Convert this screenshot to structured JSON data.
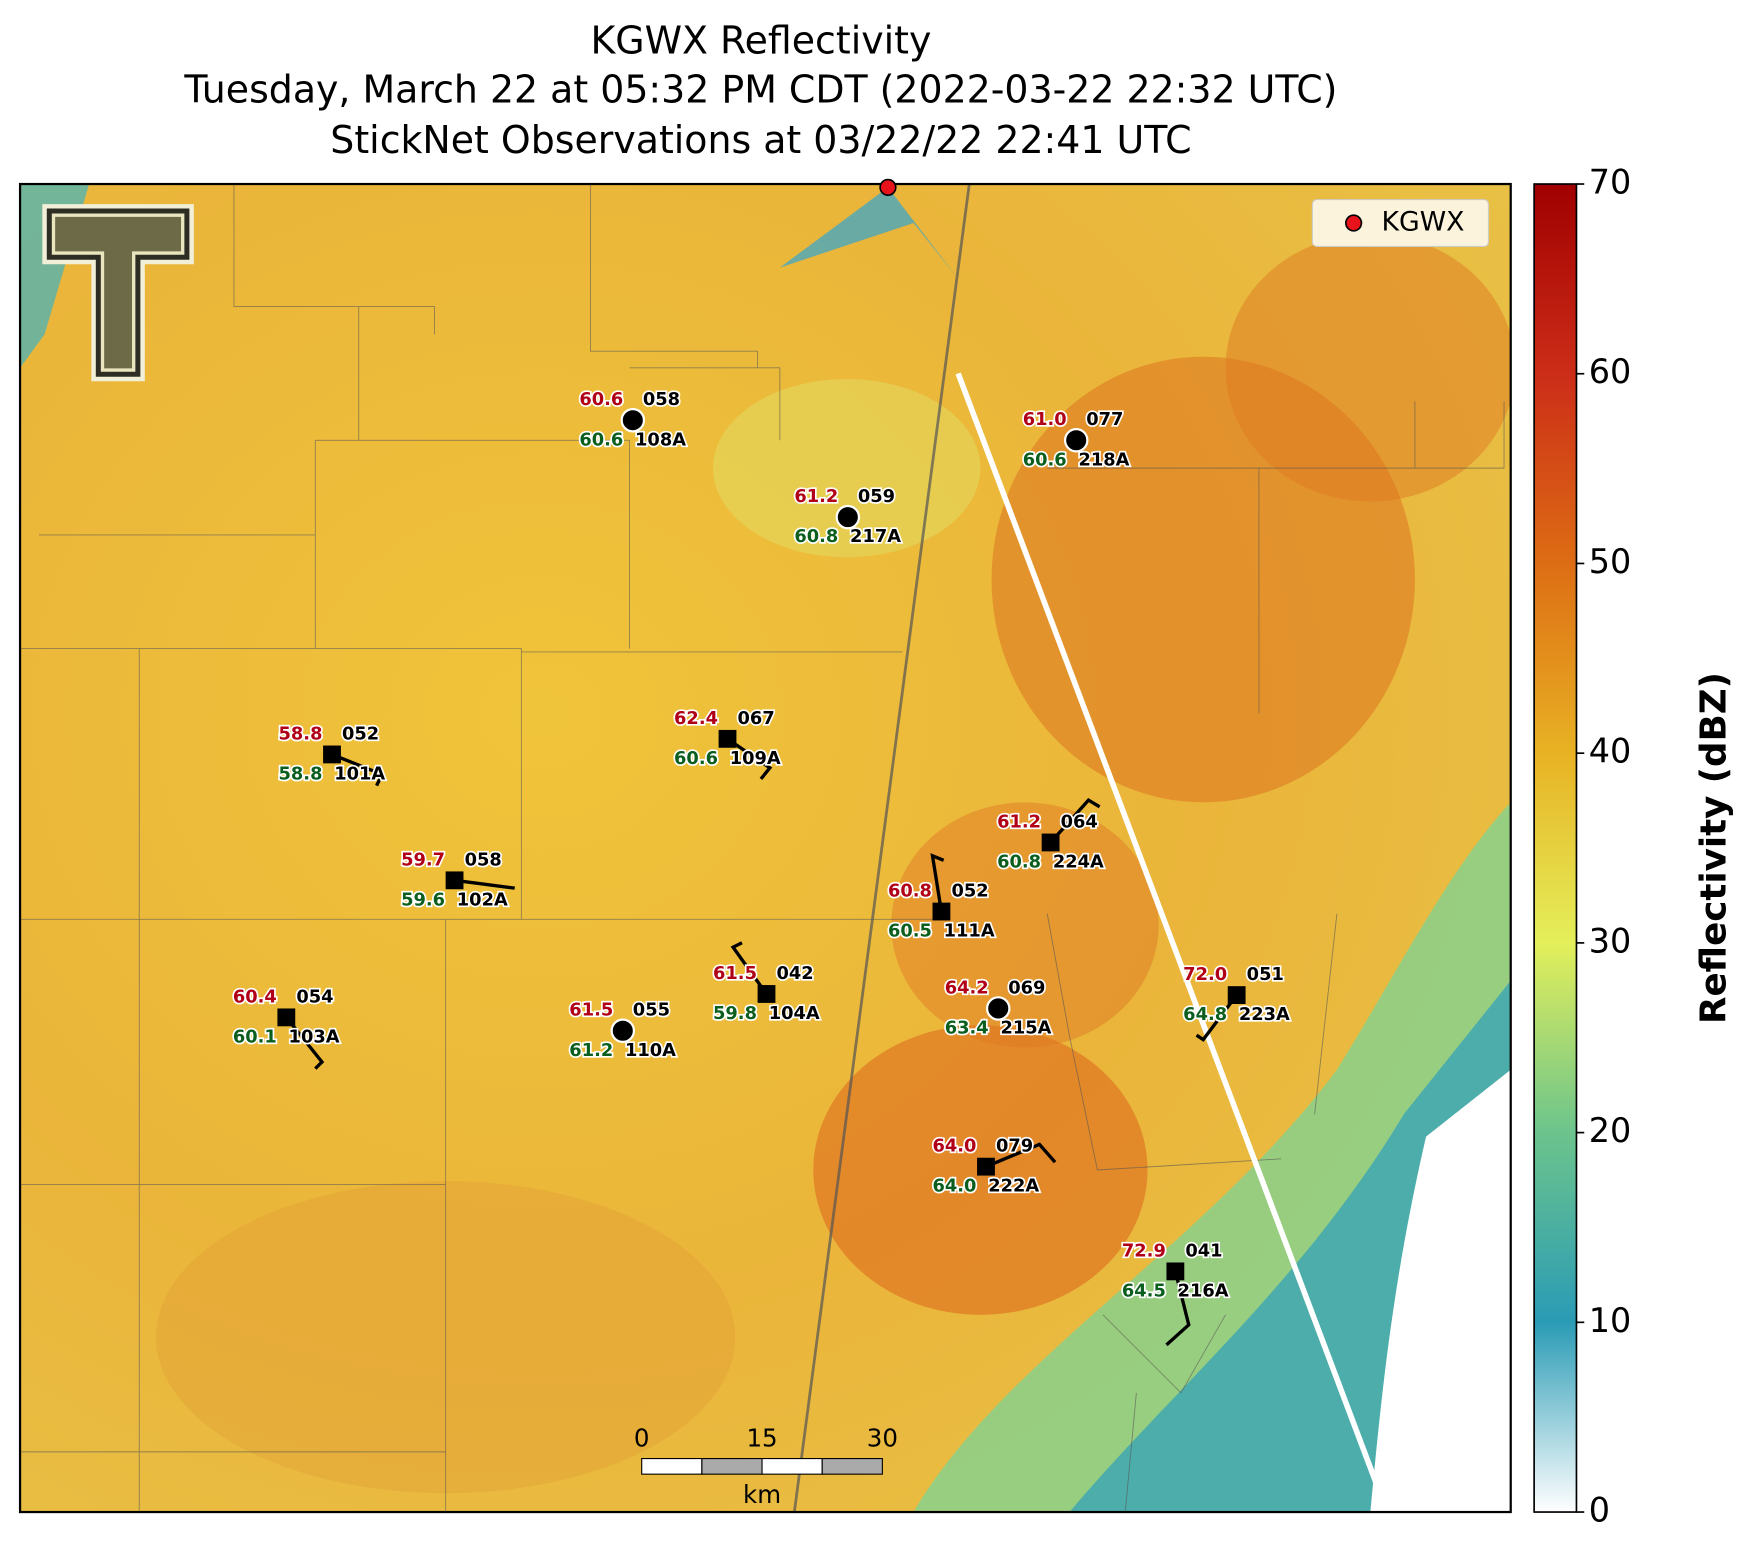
{
  "title": [
    "KGWX Reflectivity",
    "Tuesday, March 22 at 05:32 PM CDT (2022-03-22 22:32 UTC)",
    "StickNet Observations at 03/22/22 22:41 UTC"
  ],
  "legend": {
    "label": "KGWX",
    "color": "#e8131a"
  },
  "colorbar": {
    "label": "Reflectivity (dBZ)",
    "lim": [
      0,
      70
    ],
    "ticks": [
      0,
      10,
      20,
      30,
      40,
      50,
      60,
      70
    ]
  },
  "scale_bar": {
    "ticks": [
      0,
      15,
      30
    ],
    "unit": "km"
  },
  "stations": [
    {
      "id": "108A",
      "temp": 60.6,
      "dew": 60.6,
      "code": "058",
      "marker": "circle"
    },
    {
      "id": "218A",
      "temp": 61.0,
      "dew": 60.6,
      "code": "077",
      "marker": "circle"
    },
    {
      "id": "217A",
      "temp": 61.2,
      "dew": 60.8,
      "code": "059",
      "marker": "circle"
    },
    {
      "id": "101A",
      "temp": 58.8,
      "dew": 58.8,
      "code": "052",
      "marker": "square"
    },
    {
      "id": "109A",
      "temp": 62.4,
      "dew": 60.6,
      "code": "067",
      "marker": "square"
    },
    {
      "id": "224A",
      "temp": 61.2,
      "dew": 60.8,
      "code": "064",
      "marker": "square"
    },
    {
      "id": "102A",
      "temp": 59.7,
      "dew": 59.6,
      "code": "058",
      "marker": "square"
    },
    {
      "id": "111A",
      "temp": 60.8,
      "dew": 60.5,
      "code": "052",
      "marker": "square"
    },
    {
      "id": "103A",
      "temp": 60.4,
      "dew": 60.1,
      "code": "054",
      "marker": "square"
    },
    {
      "id": "110A",
      "temp": 61.5,
      "dew": 61.2,
      "code": "055",
      "marker": "circle"
    },
    {
      "id": "104A",
      "temp": 61.5,
      "dew": 59.8,
      "code": "042",
      "marker": "square"
    },
    {
      "id": "215A",
      "temp": 64.2,
      "dew": 63.4,
      "code": "069",
      "marker": "circle"
    },
    {
      "id": "223A",
      "temp": 72.0,
      "dew": 64.8,
      "code": "051",
      "marker": "square"
    },
    {
      "id": "222A",
      "temp": 64.0,
      "dew": 64.0,
      "code": "079",
      "marker": "square"
    },
    {
      "id": "216A",
      "temp": 72.9,
      "dew": 64.5,
      "code": "041",
      "marker": "square"
    }
  ]
}
